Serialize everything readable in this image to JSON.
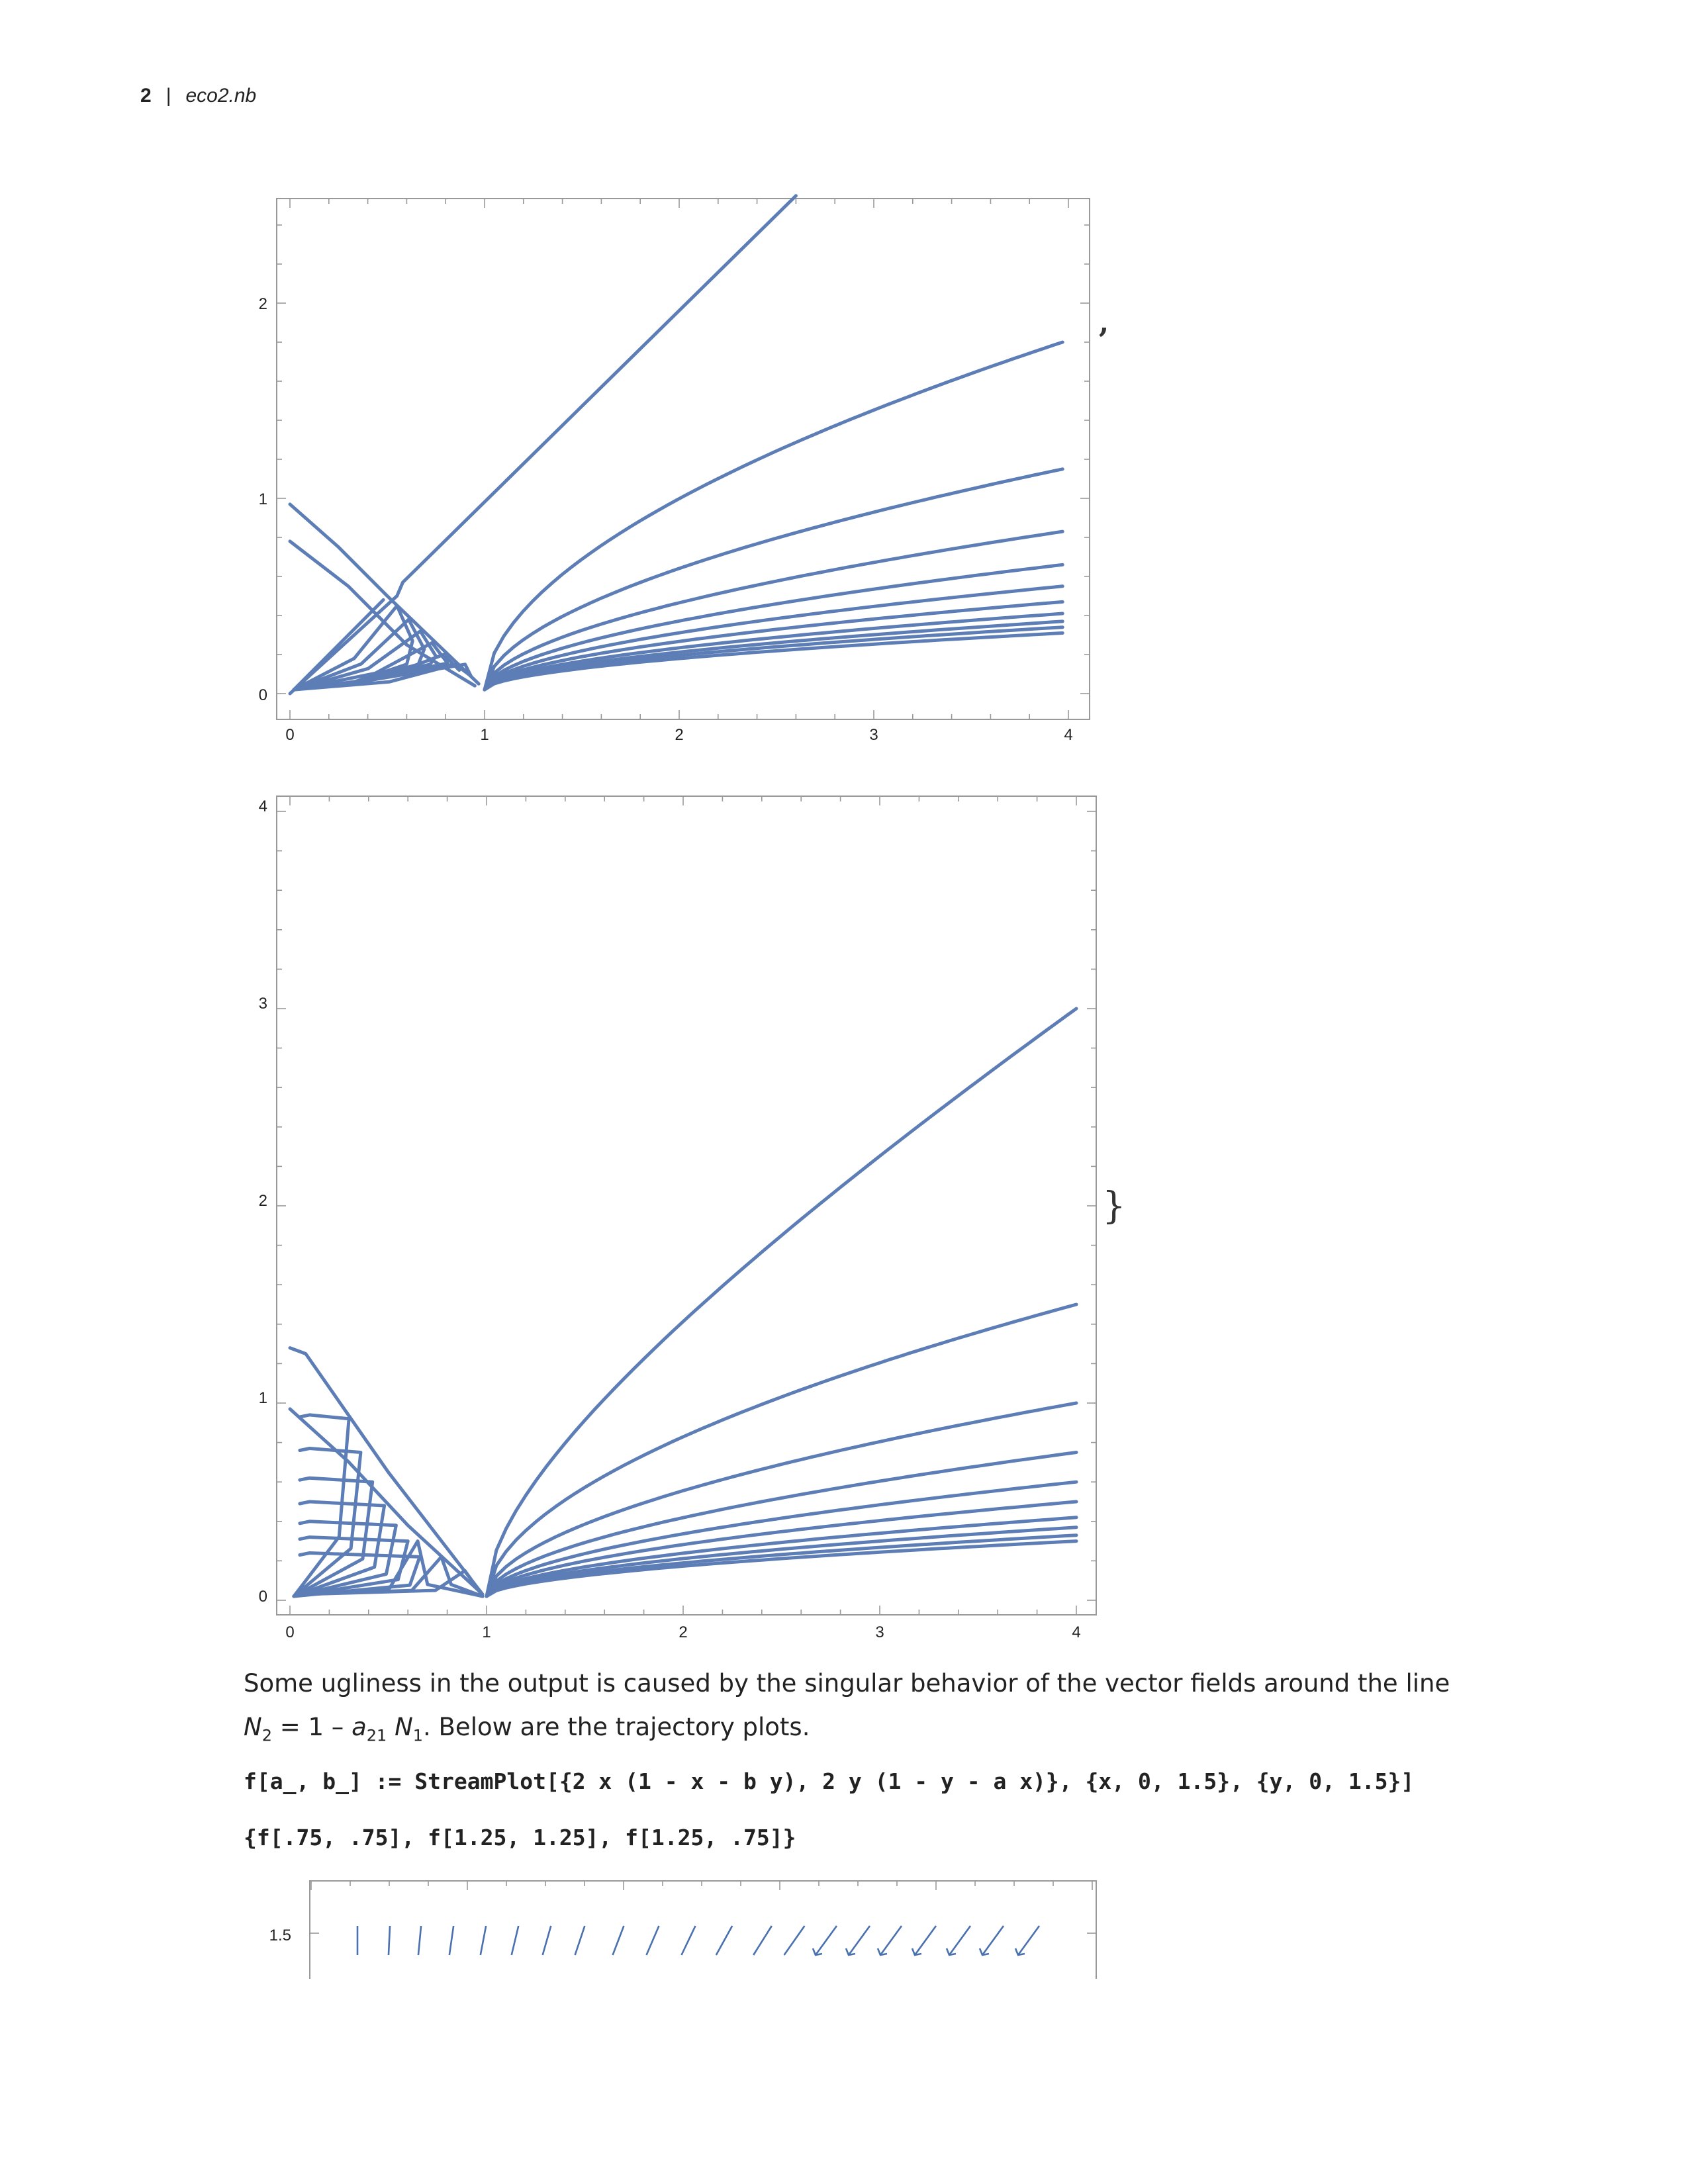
{
  "header": {
    "page_number": "2",
    "separator": "|",
    "filename": "eco2.nb"
  },
  "plot_top": {
    "x_ticks": [
      "0",
      "1",
      "2",
      "3",
      "4"
    ],
    "y_ticks": [
      "0",
      "1",
      "2"
    ],
    "xlim": [
      0,
      4.1
    ],
    "ylim": [
      -0.05,
      2.55
    ],
    "trailing_mark": ","
  },
  "plot_bottom": {
    "x_ticks": [
      "0",
      "1",
      "2",
      "3",
      "4"
    ],
    "y_ticks": [
      "0",
      "1",
      "2",
      "3",
      "4"
    ],
    "xlim": [
      0,
      4.1
    ],
    "ylim": [
      -0.05,
      4.05
    ],
    "trailing_mark": "}"
  },
  "text": {
    "line1": "Some ugliness in the output is caused by the singular behavior of the vector fields around the line",
    "eq_N": "N",
    "eq_sub2": "2",
    "eq_rel": " = 1 – ",
    "eq_a": "a",
    "eq_sub21": "21",
    "eq_sp": " ",
    "eq_N1": "N",
    "eq_sub1": "1",
    "line2_rest": ". Below are the trajectory plots."
  },
  "code": {
    "line1": "f[a_, b_] := StreamPlot[{2 x (1 - x - b y), 2 y (1 - y - a x)}, {x, 0, 1.5}, {y, 0, 1.5}]",
    "line2": "{f[.75, .75], f[1.25, 1.25], f[1.25, .75]}"
  },
  "plot_stream": {
    "y_tick": "1.5",
    "xlim": [
      0,
      1.5
    ]
  },
  "colors": {
    "curve": "#5c7db5",
    "axis": "#999999"
  }
}
